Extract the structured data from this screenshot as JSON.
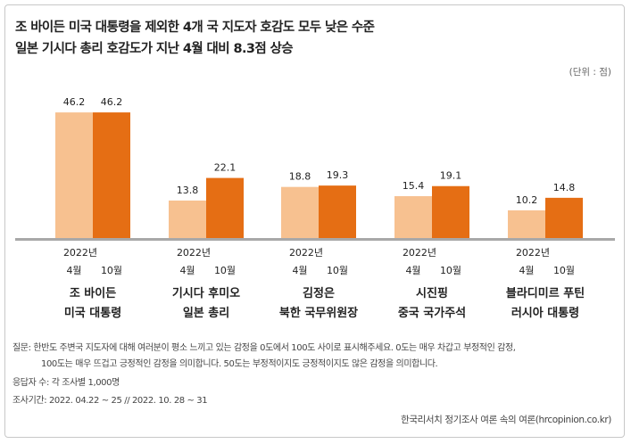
{
  "title_line1": "조 바이든 미국 대통령을 제외한 4개 국 지도자 호감도 모두 낮은 수준",
  "title_line2": "일본 기시다 총리 호감도가 지난 4월 대비 8.3점 상승",
  "unit_label": "(단위 : 점)",
  "notes": {
    "question_line1": "질문:  한반도 주변국 지도자에 대해 여러분이 평소 느끼고 있는 감정을 0도에서 100도 사이로 표시해주세요. 0도는 매우 차갑고 부정적인 감정,",
    "question_line2": "100도는 매우 뜨겁고 긍정적인 감정을 의미합니다. 50도는 부정적이지도 긍정적이지도 않은 감정을 의미합니다.",
    "respondents": "응답자 수: 각 조사별 1,000명",
    "period": "조사기간: 2022. 04.22 ~ 25 // 2022. 10. 28 ~ 31"
  },
  "source": "한국리서치 정기조사 여론 속의 여론(hrcopinion.co.kr)",
  "colors": {
    "april": "#f7c190",
    "october": "#e56e14",
    "baseline": "#a8a8a8"
  },
  "chart_data": {
    "type": "bar",
    "title": "",
    "xlabel": "",
    "ylabel": "",
    "ylim": [
      0,
      50
    ],
    "series_header": "2022년",
    "categories": [
      {
        "line1": "조 바이든",
        "line2": "미국 대통령"
      },
      {
        "line1": "기시다 후미오",
        "line2": "일본 총리"
      },
      {
        "line1": "김정은",
        "line2": "북한 국무위원장"
      },
      {
        "line1": "시진핑",
        "line2": "중국 국가주석"
      },
      {
        "line1": "블라디미르 푸틴",
        "line2": "러시아 대통령"
      }
    ],
    "series": [
      {
        "name": "4월",
        "values": [
          46.2,
          13.8,
          18.8,
          15.4,
          10.2
        ]
      },
      {
        "name": "10월",
        "values": [
          46.2,
          22.1,
          19.3,
          19.1,
          14.8
        ]
      }
    ]
  }
}
